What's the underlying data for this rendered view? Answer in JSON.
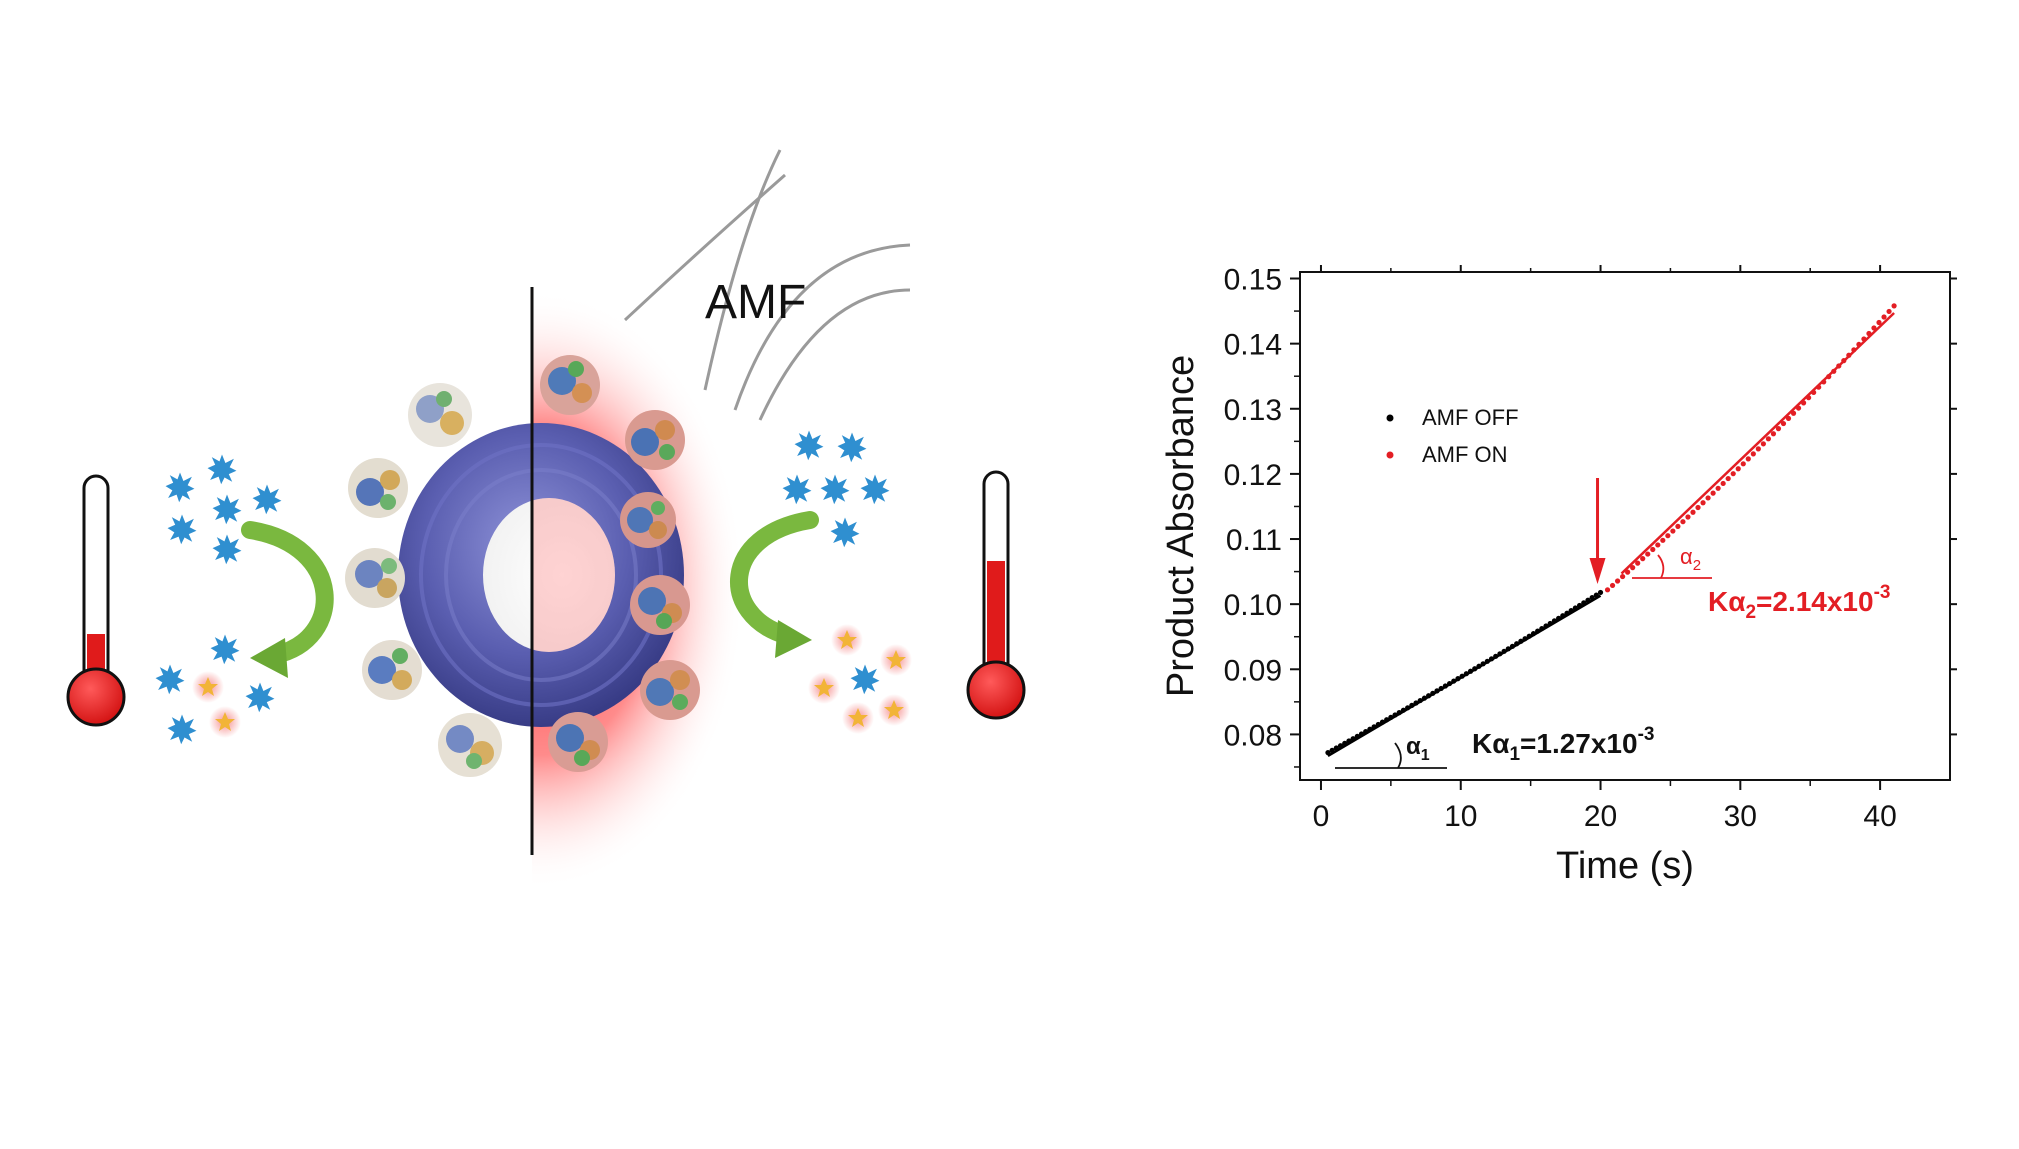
{
  "illustration": {
    "field_label": "AMF",
    "colors": {
      "torus": "#5a5eb0",
      "heat": "#ff3b3b",
      "substrate": "#2f8fd0",
      "product": "#f2b437",
      "arrow": "#7ab83f",
      "thermometer": "#e01b1b"
    },
    "left_thermometer_level": 0.28,
    "right_thermometer_level": 0.62,
    "icons": [
      "thermometer-icon",
      "substrate-star-icon",
      "product-star-icon",
      "curved-arrow-icon",
      "enzyme-icon",
      "nanoparticle-torus-icon"
    ]
  },
  "chart_data": {
    "type": "scatter",
    "xlabel": "Time (s)",
    "ylabel": "Product  Absorbance",
    "xlim": [
      -1.5,
      45
    ],
    "ylim": [
      0.073,
      0.151
    ],
    "x_ticks": [
      0,
      10,
      20,
      30,
      40
    ],
    "x_tick_labels": [
      "0",
      "10",
      "20",
      "30",
      "40"
    ],
    "y_ticks": [
      0.08,
      0.09,
      0.1,
      0.11,
      0.12,
      0.13,
      0.14,
      0.15
    ],
    "y_tick_labels": [
      "0.08",
      "0.09",
      "0.10",
      "0.11",
      "0.12",
      "0.13",
      "0.14",
      "0.15"
    ],
    "legend_position": "upper-left",
    "series": [
      {
        "name": "AMF OFF",
        "color": "#000000",
        "x_range": [
          0.5,
          20.0
        ],
        "y_start": 0.0772,
        "y_end": 0.1018
      },
      {
        "name": "AMF ON",
        "color": "#e31e24",
        "x_range": [
          20.5,
          41.0
        ],
        "y_start": 0.1022,
        "y_end": 0.1458
      }
    ],
    "fit_lines": [
      {
        "color": "#000000",
        "x": [
          0.5,
          20.0
        ],
        "y": [
          0.0767,
          0.1013
        ]
      },
      {
        "color": "#e31e24",
        "x": [
          21.5,
          41.0
        ],
        "y": [
          0.1047,
          0.1447
        ]
      }
    ],
    "annotations": {
      "alpha1": {
        "symbol": "α",
        "sub": "1"
      },
      "alpha2": {
        "symbol": "α",
        "sub": "2"
      },
      "k1": {
        "prefix": "Kα",
        "sub": "1",
        "mid": "=1.27x10",
        "sup": "-3"
      },
      "k2": {
        "prefix": "Kα",
        "sub": "2",
        "mid": "=2.14x10",
        "sup": "-3"
      }
    },
    "switch_marker_x": 20.5
  }
}
